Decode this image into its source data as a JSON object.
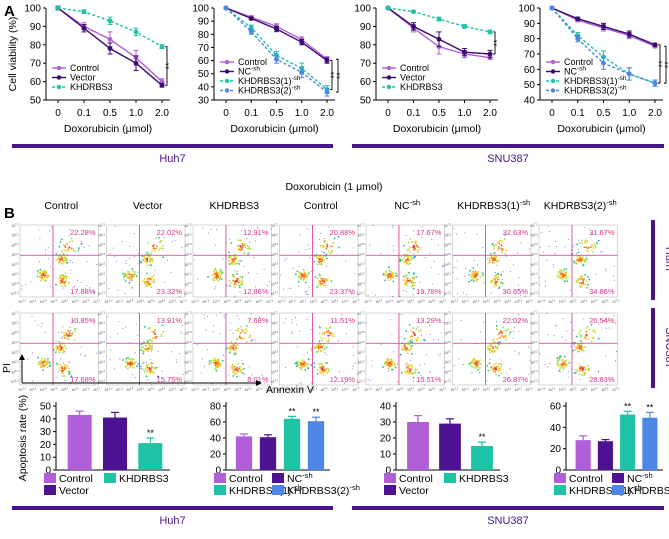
{
  "panel_labels": {
    "a": "A",
    "b": "B"
  },
  "colors": {
    "control": "#b05fd8",
    "vector": "#3b0a6e",
    "treat": "#1ec3a6",
    "sh2": "#4d86e6",
    "bar_purple": "#4c1291",
    "pink": "#d6338c",
    "band": "#4a148c"
  },
  "groups": {
    "huh7": "Huh7",
    "snu387": "SNU387"
  },
  "panel_b_title": "Doxorubicin (1 μmol)",
  "flow": {
    "columns": [
      "Control",
      "Vector",
      "KHDRBS3",
      "Control",
      "NC",
      "KHDRBS3(1)",
      "KHDRBS3(2)"
    ],
    "column_sup": [
      "",
      "",
      "",
      "",
      "-sh",
      "-sh",
      "-sh"
    ],
    "rows": [
      "Huh7",
      "SNU387"
    ],
    "top_right": [
      [
        "22.28%",
        "22.02%",
        "12.91%",
        "20.88%",
        "17.67%",
        "32.63%",
        "31.67%"
      ],
      [
        "10.85%",
        "13.91%",
        "7.68%",
        "11.51%",
        "13.29%",
        "22.02%",
        "26.54%"
      ]
    ],
    "bottom_right": [
      [
        "17.88%",
        "23.32%",
        "12.86%",
        "23.37%",
        "19.78%",
        "30.65%",
        "34.86%"
      ],
      [
        "17.68%",
        "15.75%",
        "8.01%",
        "12.19%",
        "15.51%",
        "26.87%",
        "28.83%"
      ]
    ],
    "x_label": "Annexin V",
    "y_label": "PI",
    "ticks": [
      "10",
      "10",
      "10",
      "10",
      "10",
      "10",
      "10",
      "10"
    ],
    "tick_exp": [
      "-1.3",
      "1.3",
      "2.3",
      "3.3",
      "4.3",
      "5.3",
      "6.3",
      "7.3"
    ]
  },
  "chart_data": [
    {
      "type": "line",
      "id": "A1",
      "title": "",
      "xlabel": "Doxorubicin (μmol)",
      "ylabel": "Cell viability (%)",
      "x": [
        "0",
        "0.1",
        "0.5",
        "1.0",
        "2.0"
      ],
      "yticks": [
        "50",
        "60",
        "70",
        "80",
        "90",
        "100"
      ],
      "ylim": [
        50,
        100
      ],
      "series": [
        {
          "name": "Control",
          "sup": "",
          "values": [
            100,
            90,
            83,
            73,
            60
          ],
          "err": [
            1,
            2,
            4,
            4,
            1.5
          ],
          "dashed": false,
          "color": "#b05fd8",
          "marker": "dot"
        },
        {
          "name": "Vector",
          "sup": "",
          "values": [
            100,
            89,
            78,
            70,
            58
          ],
          "err": [
            1,
            2,
            3,
            4,
            1
          ],
          "dashed": false,
          "color": "#3b0a6e",
          "marker": "dot"
        },
        {
          "name": "KHDRBS3",
          "sup": "",
          "values": [
            100,
            98,
            93,
            87,
            79
          ],
          "err": [
            0.5,
            1,
            2,
            2,
            1
          ],
          "dashed": true,
          "color": "#1ec3a6",
          "marker": "dot"
        }
      ],
      "significance": [
        {
          "label": "**"
        }
      ]
    },
    {
      "type": "line",
      "id": "A2",
      "xlabel": "Doxorubicin (μmol)",
      "ylabel": "",
      "x": [
        "0",
        "0.1",
        "0.5",
        "1.0",
        "2.0"
      ],
      "yticks": [
        "30",
        "40",
        "50",
        "60",
        "70",
        "80",
        "90",
        "100"
      ],
      "ylim": [
        30,
        100
      ],
      "series": [
        {
          "name": "Control",
          "sup": "",
          "values": [
            100,
            93,
            86,
            76,
            61
          ],
          "err": [
            0.5,
            1,
            2,
            2,
            2
          ],
          "dashed": false,
          "color": "#b05fd8",
          "marker": "dot"
        },
        {
          "name": "NC",
          "sup": "-sh",
          "values": [
            100,
            92,
            84,
            74,
            60
          ],
          "err": [
            0.5,
            1,
            2,
            2,
            2
          ],
          "dashed": false,
          "color": "#3b0a6e",
          "marker": "dot"
        },
        {
          "name": "KHDRBS3(1)",
          "sup": "-sh",
          "values": [
            100,
            85,
            64,
            54,
            38
          ],
          "err": [
            0.5,
            2,
            3,
            4,
            3
          ],
          "dashed": true,
          "color": "#1ec3a6",
          "marker": "dot"
        },
        {
          "name": "KHDRBS3(2)",
          "sup": "-sh",
          "values": [
            100,
            82,
            61,
            51,
            36
          ],
          "err": [
            0.5,
            2,
            3,
            4,
            3
          ],
          "dashed": true,
          "color": "#4d86e6",
          "marker": "dot"
        }
      ],
      "significance": [
        {
          "label": "**"
        },
        {
          "label": "**"
        }
      ]
    },
    {
      "type": "line",
      "id": "A3",
      "xlabel": "Doxorubicin (μmol)",
      "ylabel": "",
      "x": [
        "0",
        "0.1",
        "0.5",
        "1.0",
        "2.0"
      ],
      "yticks": [
        "50",
        "60",
        "70",
        "80",
        "90",
        "100"
      ],
      "ylim": [
        50,
        100
      ],
      "series": [
        {
          "name": "Control",
          "sup": "",
          "values": [
            100,
            89,
            79,
            75,
            73
          ],
          "err": [
            0.5,
            2,
            4,
            2,
            1
          ],
          "dashed": false,
          "color": "#b05fd8",
          "marker": "dot"
        },
        {
          "name": "Vector",
          "sup": "",
          "values": [
            100,
            90,
            83,
            76,
            75
          ],
          "err": [
            0.5,
            2,
            4,
            2,
            2
          ],
          "dashed": false,
          "color": "#3b0a6e",
          "marker": "dot"
        },
        {
          "name": "KHDRBS3",
          "sup": "",
          "values": [
            100,
            98,
            94,
            90,
            87
          ],
          "err": [
            0.3,
            0.5,
            1,
            1,
            1
          ],
          "dashed": true,
          "color": "#1ec3a6",
          "marker": "dot"
        }
      ],
      "significance": [
        {
          "label": "**"
        }
      ]
    },
    {
      "type": "line",
      "id": "A4",
      "xlabel": "Doxorubicin (μmol)",
      "ylabel": "",
      "x": [
        "0",
        "0.1",
        "0.5",
        "1.0",
        "2.0"
      ],
      "yticks": [
        "40",
        "50",
        "60",
        "70",
        "80",
        "90",
        "100"
      ],
      "ylim": [
        40,
        100
      ],
      "series": [
        {
          "name": "Control",
          "sup": "",
          "values": [
            100,
            92,
            87,
            82,
            75
          ],
          "err": [
            0.5,
            1,
            2,
            2,
            1
          ],
          "dashed": false,
          "color": "#b05fd8",
          "marker": "dot"
        },
        {
          "name": "NC",
          "sup": "-sh",
          "values": [
            100,
            93,
            88,
            83,
            76
          ],
          "err": [
            0.5,
            1,
            2,
            2,
            1
          ],
          "dashed": false,
          "color": "#3b0a6e",
          "marker": "dot"
        },
        {
          "name": "KHDRBS3(1)",
          "sup": "-sh",
          "values": [
            100,
            82,
            68,
            57,
            51
          ],
          "err": [
            0.5,
            2,
            4,
            4,
            2
          ],
          "dashed": true,
          "color": "#1ec3a6",
          "marker": "dot"
        },
        {
          "name": "KHDRBS3(2)",
          "sup": "-sh",
          "values": [
            100,
            80,
            64,
            57,
            51
          ],
          "err": [
            0.5,
            2,
            4,
            4,
            2
          ],
          "dashed": true,
          "color": "#4d86e6",
          "marker": "dot"
        }
      ],
      "significance": [
        {
          "label": "**"
        },
        {
          "label": "**"
        }
      ]
    },
    {
      "type": "bar",
      "id": "B1",
      "ylabel": "Apoptosis rate (%)",
      "yticks": [
        "0",
        "10",
        "20",
        "30",
        "40",
        "50"
      ],
      "ylim": [
        0,
        50
      ],
      "categories": [
        "Control",
        "Vector",
        "KHDRBS3"
      ],
      "sups": [
        "",
        "",
        ""
      ],
      "values": [
        43,
        41,
        21
      ],
      "err": [
        3,
        4,
        4
      ],
      "colors": [
        "#b05fd8",
        "#4c1291",
        "#1ec3a6"
      ],
      "sig": [
        "",
        "",
        "**"
      ]
    },
    {
      "type": "bar",
      "id": "B2",
      "yticks": [
        "0",
        "20",
        "40",
        "60",
        "80"
      ],
      "ylim": [
        0,
        80
      ],
      "categories": [
        "Control",
        "NC",
        "KHDRBS3(1)",
        "KHDRBS3(2)"
      ],
      "sups": [
        "",
        "-sh",
        "-sh",
        "-sh"
      ],
      "values": [
        42,
        41,
        64,
        61
      ],
      "err": [
        3,
        3,
        3,
        5
      ],
      "colors": [
        "#b05fd8",
        "#4c1291",
        "#1ec3a6",
        "#4d86e6"
      ],
      "sig": [
        "",
        "",
        "**",
        "**"
      ]
    },
    {
      "type": "bar",
      "id": "B3",
      "yticks": [
        "0",
        "10",
        "20",
        "30",
        "40"
      ],
      "ylim": [
        0,
        40
      ],
      "categories": [
        "Control",
        "Vector",
        "KHDRBS3"
      ],
      "sups": [
        "",
        "",
        ""
      ],
      "values": [
        30,
        29,
        15
      ],
      "err": [
        4,
        3,
        2.5
      ],
      "colors": [
        "#b05fd8",
        "#4c1291",
        "#1ec3a6"
      ],
      "sig": [
        "",
        "",
        "**"
      ]
    },
    {
      "type": "bar",
      "id": "B4",
      "yticks": [
        "0",
        "20",
        "40",
        "60"
      ],
      "ylim": [
        0,
        60
      ],
      "categories": [
        "Control",
        "NC",
        "KHDRBS3(1)",
        "KHDRBS3(2)"
      ],
      "sups": [
        "",
        "-sh",
        "-sh",
        "-sh"
      ],
      "values": [
        28,
        27,
        52,
        49
      ],
      "err": [
        4,
        1.5,
        3,
        5
      ],
      "colors": [
        "#b05fd8",
        "#4c1291",
        "#1ec3a6",
        "#4d86e6"
      ],
      "sig": [
        "",
        "",
        "**",
        "**"
      ]
    }
  ]
}
